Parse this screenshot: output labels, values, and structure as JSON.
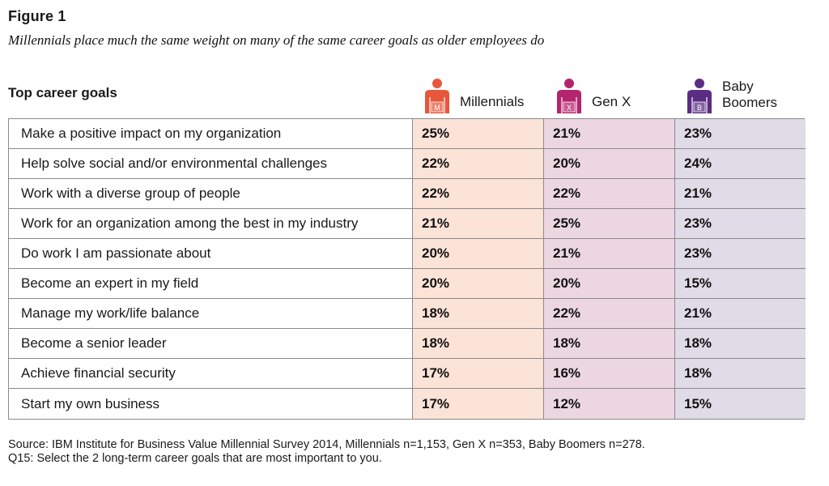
{
  "figure_label": "Figure 1",
  "figure_title": "Millennials place much the same weight on many of the same career goals as older employees do",
  "table_header": "Top career goals",
  "columns": [
    {
      "line1": "Millennials",
      "line2": "",
      "badge": "M",
      "color": "#e8573b",
      "icon": "person-icon"
    },
    {
      "line1": "Gen X",
      "line2": "",
      "badge": "X",
      "color": "#b5246e",
      "icon": "person-icon"
    },
    {
      "line1": "Baby",
      "line2": "Boomers",
      "badge": "B",
      "color": "#5b2d82",
      "icon": "person-icon"
    }
  ],
  "chart_data": {
    "type": "table",
    "title": "",
    "columns": [
      "Millennials",
      "Gen X",
      "Baby Boomers"
    ],
    "rows": [
      {
        "goal": "Make a positive impact on my organization",
        "values": [
          "25%",
          "21%",
          "23%"
        ]
      },
      {
        "goal": "Help solve social and/or environmental challenges",
        "values": [
          "22%",
          "20%",
          "24%"
        ]
      },
      {
        "goal": "Work with a diverse group of people",
        "values": [
          "22%",
          "22%",
          "21%"
        ]
      },
      {
        "goal": "Work for an organization among the best in my industry",
        "values": [
          "21%",
          "25%",
          "23%"
        ]
      },
      {
        "goal": "Do work I am passionate about",
        "values": [
          "20%",
          "21%",
          "23%"
        ]
      },
      {
        "goal": "Become an expert in my field",
        "values": [
          "20%",
          "20%",
          "15%"
        ]
      },
      {
        "goal": "Manage my work/life balance",
        "values": [
          "18%",
          "22%",
          "21%"
        ]
      },
      {
        "goal": "Become a senior leader",
        "values": [
          "18%",
          "18%",
          "18%"
        ]
      },
      {
        "goal": "Achieve financial security",
        "values": [
          "17%",
          "16%",
          "18%"
        ]
      },
      {
        "goal": "Start my own business",
        "values": [
          "17%",
          "12%",
          "15%"
        ]
      }
    ]
  },
  "source_line1": "Source: IBM Institute for Business Value Millennial Survey 2014, Millennials n=1,153, Gen X n=353, Baby Boomers n=278.",
  "source_line2": "Q15: Select the 2 long-term career goals that are most important to you."
}
